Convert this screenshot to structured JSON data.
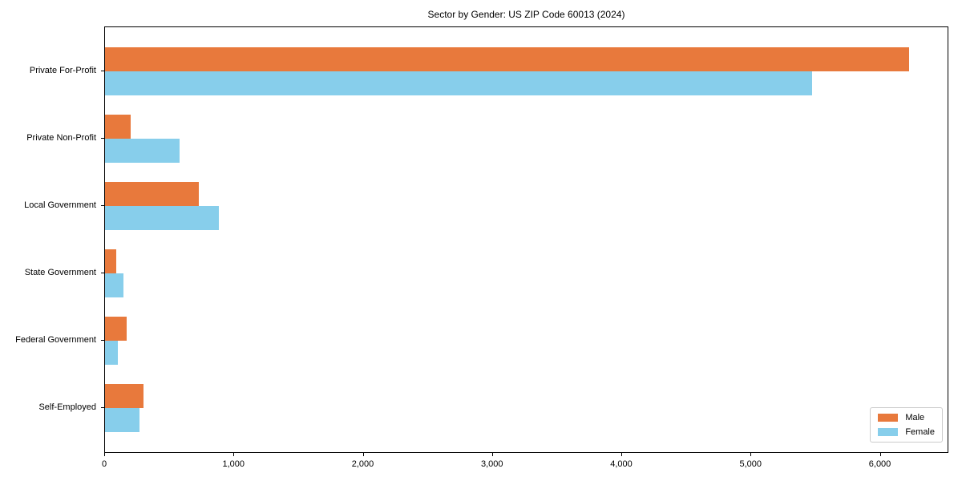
{
  "chart_data": {
    "type": "bar",
    "orientation": "horizontal",
    "title": "Sector by Gender: US ZIP Code 60013 (2024)",
    "categories": [
      "Private For-Profit",
      "Private Non-Profit",
      "Local Government",
      "State Government",
      "Federal Government",
      "Self-Employed"
    ],
    "series": [
      {
        "name": "Male",
        "color": "#e8793c",
        "values": [
          6230,
          200,
          730,
          90,
          170,
          300
        ]
      },
      {
        "name": "Female",
        "color": "#87ceeb",
        "values": [
          5480,
          580,
          880,
          140,
          100,
          265
        ]
      }
    ],
    "xlabel": "",
    "ylabel": "",
    "xlim": [
      0,
      6530
    ],
    "x_ticks": [
      0,
      1000,
      2000,
      3000,
      4000,
      5000,
      6000
    ],
    "x_tick_labels": [
      "0",
      "1,000",
      "2,000",
      "3,000",
      "4,000",
      "5,000",
      "6,000"
    ],
    "grid": false,
    "legend_position": "lower right",
    "plot_border": true,
    "background_color": "#ffffff"
  }
}
